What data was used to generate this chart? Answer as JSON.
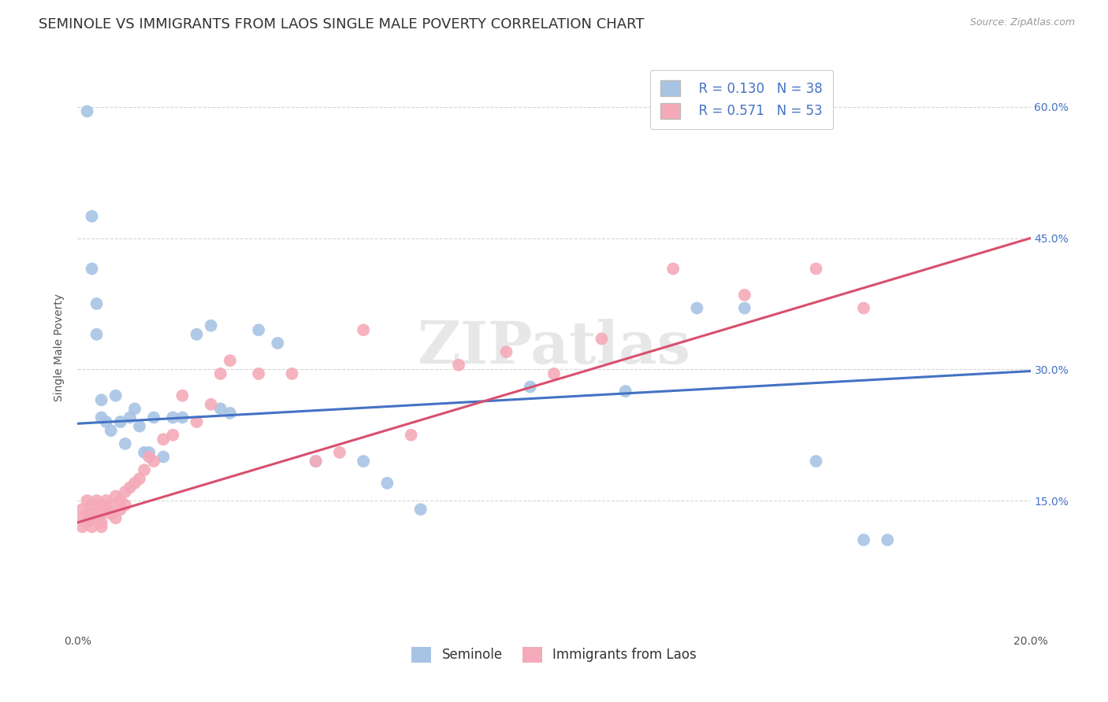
{
  "title": "SEMINOLE VS IMMIGRANTS FROM LAOS SINGLE MALE POVERTY CORRELATION CHART",
  "source": "Source: ZipAtlas.com",
  "ylabel": "Single Male Poverty",
  "xlim": [
    0.0,
    0.2
  ],
  "ylim": [
    0.0,
    0.65
  ],
  "xtick_pos": [
    0.0,
    0.04,
    0.08,
    0.12,
    0.16,
    0.2
  ],
  "xtick_labels": [
    "0.0%",
    "",
    "",
    "",
    "",
    "20.0%"
  ],
  "ytick_positions": [
    0.15,
    0.3,
    0.45,
    0.6
  ],
  "ytick_labels": [
    "15.0%",
    "30.0%",
    "45.0%",
    "60.0%"
  ],
  "watermark": "ZIPatlas",
  "blue_line": [
    0.0,
    0.238,
    0.2,
    0.298
  ],
  "pink_line": [
    0.0,
    0.125,
    0.2,
    0.45
  ],
  "seminole_x": [
    0.002,
    0.003,
    0.003,
    0.004,
    0.004,
    0.005,
    0.005,
    0.006,
    0.007,
    0.008,
    0.009,
    0.01,
    0.011,
    0.012,
    0.013,
    0.014,
    0.015,
    0.016,
    0.018,
    0.02,
    0.022,
    0.025,
    0.028,
    0.03,
    0.032,
    0.038,
    0.042,
    0.05,
    0.06,
    0.065,
    0.072,
    0.095,
    0.115,
    0.13,
    0.14,
    0.155,
    0.165,
    0.17
  ],
  "seminole_y": [
    0.595,
    0.475,
    0.415,
    0.375,
    0.34,
    0.265,
    0.245,
    0.24,
    0.23,
    0.27,
    0.24,
    0.215,
    0.245,
    0.255,
    0.235,
    0.205,
    0.205,
    0.245,
    0.2,
    0.245,
    0.245,
    0.34,
    0.35,
    0.255,
    0.25,
    0.345,
    0.33,
    0.195,
    0.195,
    0.17,
    0.14,
    0.28,
    0.275,
    0.37,
    0.37,
    0.195,
    0.105,
    0.105
  ],
  "laos_x": [
    0.001,
    0.001,
    0.001,
    0.002,
    0.002,
    0.002,
    0.003,
    0.003,
    0.003,
    0.004,
    0.004,
    0.004,
    0.005,
    0.005,
    0.005,
    0.005,
    0.006,
    0.006,
    0.007,
    0.007,
    0.008,
    0.008,
    0.009,
    0.009,
    0.01,
    0.01,
    0.011,
    0.012,
    0.013,
    0.014,
    0.015,
    0.016,
    0.018,
    0.02,
    0.022,
    0.025,
    0.028,
    0.03,
    0.032,
    0.038,
    0.045,
    0.05,
    0.055,
    0.06,
    0.07,
    0.08,
    0.09,
    0.1,
    0.11,
    0.125,
    0.14,
    0.155,
    0.165
  ],
  "laos_y": [
    0.13,
    0.14,
    0.12,
    0.135,
    0.15,
    0.125,
    0.13,
    0.145,
    0.12,
    0.14,
    0.15,
    0.13,
    0.145,
    0.135,
    0.125,
    0.12,
    0.15,
    0.14,
    0.145,
    0.135,
    0.13,
    0.155,
    0.14,
    0.15,
    0.16,
    0.145,
    0.165,
    0.17,
    0.175,
    0.185,
    0.2,
    0.195,
    0.22,
    0.225,
    0.27,
    0.24,
    0.26,
    0.295,
    0.31,
    0.295,
    0.295,
    0.195,
    0.205,
    0.345,
    0.225,
    0.305,
    0.32,
    0.295,
    0.335,
    0.415,
    0.385,
    0.415,
    0.37
  ],
  "seminole_color": "#a8c4e5",
  "laos_color": "#f4aab8",
  "blue_line_color": "#4472c4",
  "pink_line_color": "#d94f6e",
  "background_color": "#ffffff",
  "grid_color": "#cccccc",
  "title_fontsize": 13,
  "axis_label_fontsize": 10,
  "tick_fontsize": 10,
  "legend_fontsize": 12
}
